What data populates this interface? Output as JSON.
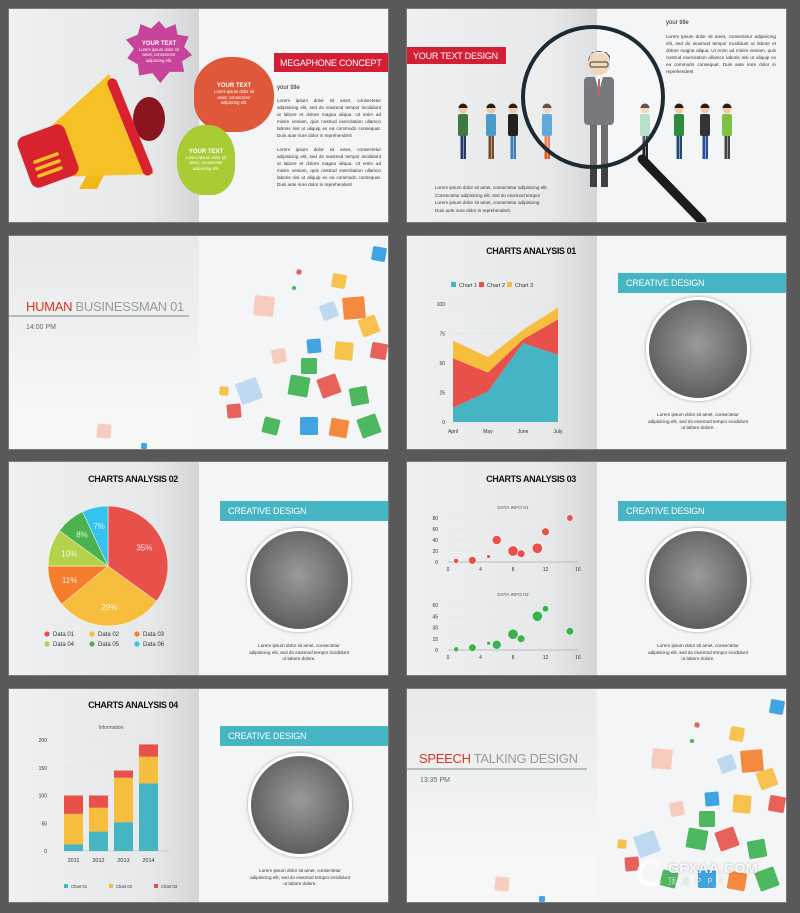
{
  "colors": {
    "background": "#595959",
    "red": "#d21f35",
    "teal": "#45b4c3",
    "yellow": "#f7bd3c",
    "orange": "#f57d2b"
  },
  "lorem_para": "Lorem ipsum dolor sit amet, consectetur adipisicing elit, sed do eiusmod tempor incididunt ut labore et dolore magna aliqua. Ut enim ad minim veniam, quis nostrud exercitation ullamco laboris nisi ut aliquip ex ea commodo consequat. Duis aute irure dolor in reprehenderit",
  "caption": "Lorem ipsum dolor sit amet, consectetur adipisicing elit, sed do eiusmod tempor incididunt ut labore dolore.",
  "slides": [
    {
      "title": "MEGAPHONE CONCEPT",
      "subtitle": "your title",
      "bubbles": [
        {
          "heading": "YOUR TEXT",
          "text": "Lorem ipsum dolor sit amet, consectetur adipiscing elit."
        },
        {
          "heading": "YOUR TEXT",
          "text": "Lorem ipsum dolor sit amet, consectetur adipiscing elit."
        },
        {
          "heading": "YOUR TEXT",
          "text": "Lorem ipsum dolor sit amet, consectetur adipiscing elit."
        }
      ],
      "icon": "megaphone-icon"
    },
    {
      "title": "YOUR TEXT DESIGN",
      "subtitle": "your title",
      "icon": "magnifier-icon",
      "bullets": [
        "Lorem ipsum dolor sit amet, consectetur adipisicing elit.",
        "Consectetur adipisicing elit, sed do eiusmod tempor",
        "Lorem ipsum dolor sit amet, consectetur adipisicing",
        "Duis aute irure dolor in reprehenderit."
      ]
    },
    {
      "title_accent": "HUMAN",
      "title_rest": " BUSINESSMAN 01",
      "time": "14:00 PM"
    },
    {
      "title": "CHARTS ANALYSIS 01",
      "banner": "CREATIVE DESIGN"
    },
    {
      "title": "CHARTS ANALYSIS 02",
      "banner": "CREATIVE DESIGN"
    },
    {
      "title": "CHARTS ANALYSIS 03",
      "banner": "CREATIVE DESIGN"
    },
    {
      "title": "CHARTS ANALYSIS 04",
      "banner": "CREATIVE DESIGN"
    },
    {
      "title_accent": "SPEECH",
      "title_rest": " TALKING DESIGN",
      "time": "13:35 PM"
    }
  ],
  "watermark": {
    "logo": "GFXAA.COM",
    "sub": "顶尖PPT"
  },
  "chart_data": [
    {
      "type": "area",
      "stacked": true,
      "categories": [
        "April",
        "May",
        "June",
        "July"
      ],
      "ylim": [
        0,
        100
      ],
      "yticks": [
        0,
        25,
        50,
        75,
        100
      ],
      "grid": true,
      "legend": "top",
      "series": [
        {
          "name": "Chart 1",
          "color": "#45b4c3",
          "values": [
            12,
            26,
            67,
            57
          ]
        },
        {
          "name": "Chart 2",
          "color": "#e8514a",
          "values": [
            42,
            16,
            3,
            30
          ]
        },
        {
          "name": "Chart 3",
          "color": "#f7bd3c",
          "values": [
            15,
            13,
            8,
            10
          ]
        }
      ]
    },
    {
      "type": "pie",
      "legend": "bottom",
      "slices": [
        {
          "name": "Data 01",
          "value": 35,
          "label": "35%",
          "color": "#e8514a"
        },
        {
          "name": "Data 02",
          "value": 29,
          "label": "29%",
          "color": "#f7bd3c"
        },
        {
          "name": "Data 03",
          "value": 11,
          "label": "11%",
          "color": "#f57d2b"
        },
        {
          "name": "Data 04",
          "value": 10,
          "label": "10%",
          "color": "#b5d34a"
        },
        {
          "name": "Data 05",
          "value": 8,
          "label": "8%",
          "color": "#4cb24f"
        },
        {
          "name": "Data 06",
          "value": 7,
          "label": "7%",
          "color": "#33c3ee"
        }
      ]
    },
    {
      "type": "scatter",
      "title": "DATA INFO 01",
      "xlim": [
        0,
        16
      ],
      "xticks": [
        0,
        4,
        8,
        12,
        16
      ],
      "ylim": [
        0,
        80
      ],
      "yticks": [
        0,
        20,
        40,
        60,
        80
      ],
      "color": "#e8514a",
      "points": [
        {
          "x": 1,
          "y": 2,
          "size": 2
        },
        {
          "x": 3,
          "y": 3,
          "size": 3
        },
        {
          "x": 5,
          "y": 10,
          "size": 1.5
        },
        {
          "x": 6,
          "y": 40,
          "size": 3.5
        },
        {
          "x": 8,
          "y": 20,
          "size": 4
        },
        {
          "x": 9,
          "y": 15,
          "size": 3
        },
        {
          "x": 11,
          "y": 25,
          "size": 4
        },
        {
          "x": 12,
          "y": 55,
          "size": 3
        },
        {
          "x": 15,
          "y": 80,
          "size": 2.5
        }
      ]
    },
    {
      "type": "scatter",
      "title": "DATA INFO 02",
      "xlim": [
        0,
        16
      ],
      "xticks": [
        0,
        4,
        8,
        12,
        16
      ],
      "ylim": [
        0,
        60
      ],
      "yticks": [
        0,
        15,
        30,
        45,
        60
      ],
      "color": "#3bb14f",
      "points": [
        {
          "x": 1,
          "y": 1,
          "size": 2
        },
        {
          "x": 3,
          "y": 3,
          "size": 3
        },
        {
          "x": 5,
          "y": 9,
          "size": 1.5
        },
        {
          "x": 6,
          "y": 7,
          "size": 3.5
        },
        {
          "x": 8,
          "y": 21,
          "size": 4
        },
        {
          "x": 9,
          "y": 15,
          "size": 3
        },
        {
          "x": 11,
          "y": 45,
          "size": 4
        },
        {
          "x": 12,
          "y": 55,
          "size": 2.5
        },
        {
          "x": 15,
          "y": 25,
          "size": 3
        }
      ]
    },
    {
      "type": "bar",
      "stacked": true,
      "title": "Information",
      "categories": [
        "2011",
        "2012",
        "2013",
        "2014"
      ],
      "ylim": [
        0,
        200
      ],
      "yticks": [
        0,
        50,
        100,
        150,
        200
      ],
      "legend": "bottom",
      "series": [
        {
          "name": "Chart 01",
          "color": "#45b4c3",
          "values": [
            12,
            35,
            52,
            122
          ]
        },
        {
          "name": "Chart 02",
          "color": "#f7bd3c",
          "values": [
            55,
            43,
            80,
            48
          ]
        },
        {
          "name": "Chart 03",
          "color": "#e8514a",
          "values": [
            33,
            22,
            13,
            22
          ]
        }
      ]
    }
  ]
}
